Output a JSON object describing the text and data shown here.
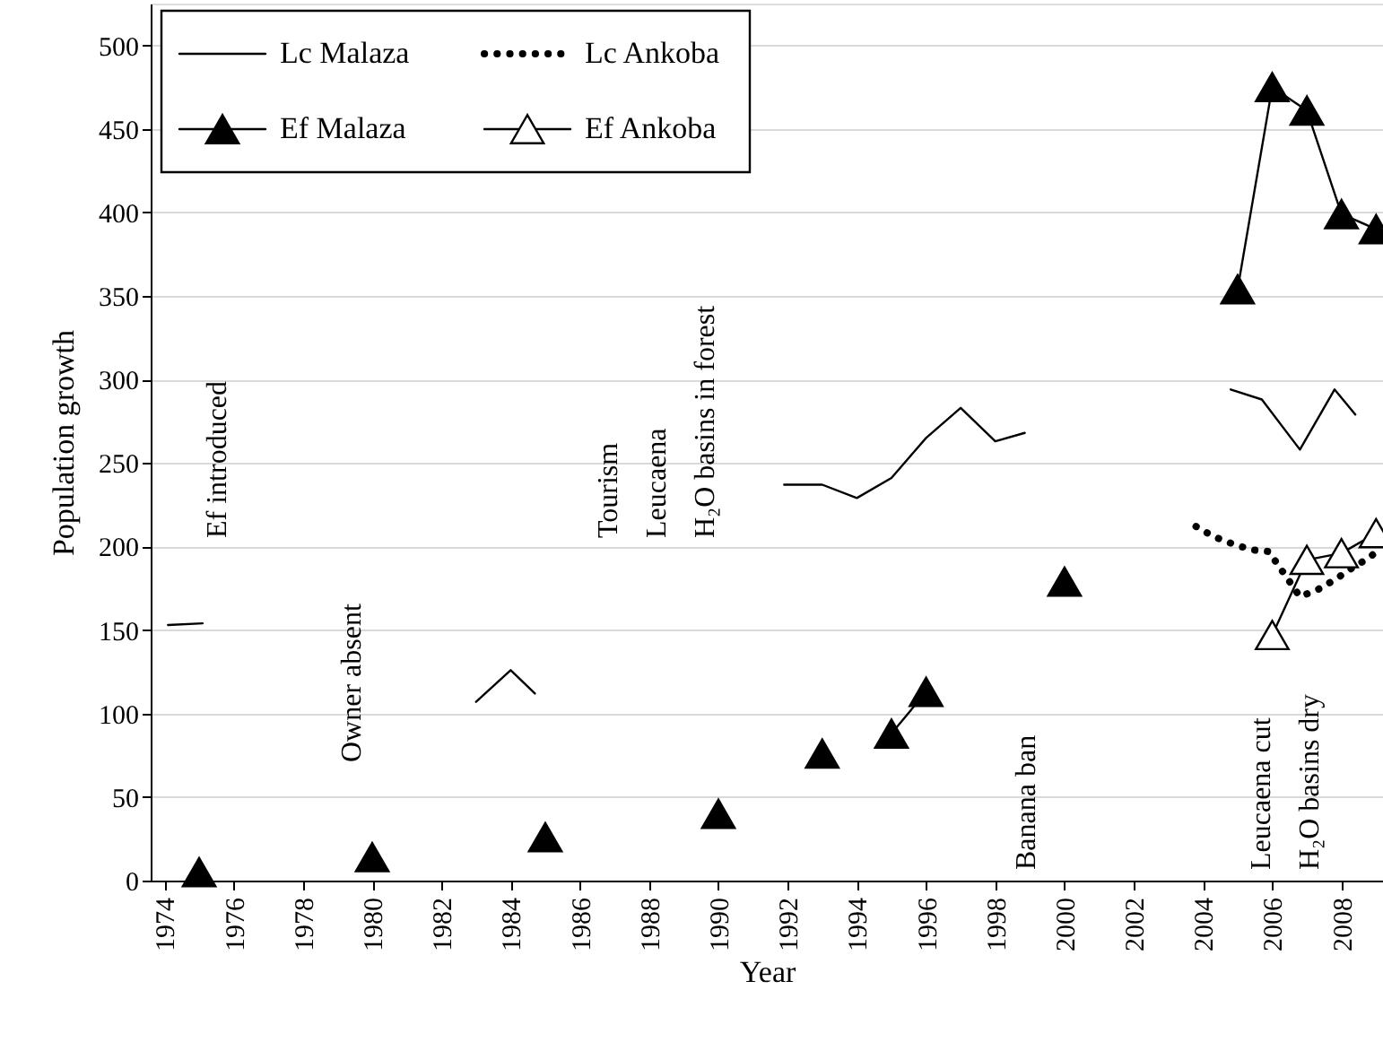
{
  "chart_data": {
    "type": "line",
    "xlabel": "Year",
    "ylabel": "Population growth",
    "xlim": [
      1973.6,
      2009.2
    ],
    "ylim": [
      0,
      525
    ],
    "xticks": [
      1974,
      1976,
      1978,
      1980,
      1982,
      1984,
      1986,
      1988,
      1990,
      1992,
      1994,
      1996,
      1998,
      2000,
      2002,
      2004,
      2006,
      2008
    ],
    "yticks": [
      0,
      50,
      100,
      150,
      200,
      250,
      300,
      350,
      400,
      450,
      500
    ],
    "grid": "y",
    "legend": "top left",
    "series": [
      {
        "name": "Lc Malaza",
        "color": "#000000",
        "line_style": "solid",
        "marker": "none",
        "x": [
          1974.1,
          1975.1,
          1979,
          1983,
          1984,
          1984.7,
          1988,
          1991.9,
          1993,
          1994,
          1995,
          1996,
          1997,
          1998,
          1998.85,
          2002,
          2004.8,
          2005.7,
          2006.8,
          2007.8,
          2008.4
        ],
        "values": [
          153,
          154,
          null,
          107,
          126,
          112,
          null,
          237,
          237,
          229,
          241,
          265,
          283,
          263,
          268,
          null,
          294,
          288,
          258,
          294,
          279
        ]
      },
      {
        "name": "Lc Ankoba",
        "color": "#000000",
        "line_style": "dotted",
        "marker": "none",
        "x": [
          2003.8,
          2004.3,
          2004.8,
          2005.4,
          2005.9,
          2006.2,
          2006.8,
          2007.3,
          2007.8,
          2008.3,
          2008.7,
          2009.1
        ],
        "values": [
          212,
          206,
          202,
          198,
          197,
          188,
          170,
          174,
          180,
          187,
          192,
          198
        ]
      },
      {
        "name": "Ef Malaza",
        "color": "#000000",
        "line_style": "solid",
        "marker": "triangle",
        "x": [
          1975,
          1977,
          1980,
          1982,
          1985,
          1987,
          1990,
          1991,
          1993,
          1994,
          1995,
          1996,
          1998,
          2000,
          2002,
          2005,
          2006,
          2007,
          2008,
          2009
        ],
        "values": [
          5,
          null,
          14,
          null,
          26,
          null,
          40,
          null,
          76,
          null,
          88,
          113,
          null,
          179,
          null,
          354,
          475,
          461,
          399,
          390
        ]
      },
      {
        "name": "Ef Ankoba",
        "color": "#000000",
        "line_style": "solid",
        "marker": "triangle",
        "x": [
          2006,
          2007,
          2008,
          2009
        ],
        "values": [
          147,
          192,
          196,
          208
        ]
      }
    ],
    "annotations": [
      "Ef introduced",
      "Owner absent",
      "Tourism",
      "Leucaena",
      "H₂O basins in forest",
      "Banana ban",
      "Leucaena cut",
      "H₂O basins dry"
    ]
  }
}
